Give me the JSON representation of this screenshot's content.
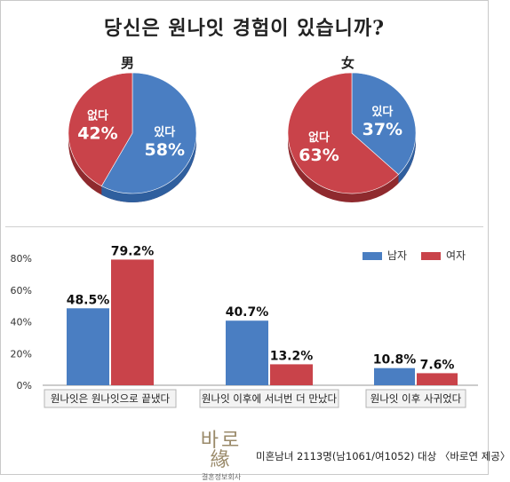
{
  "title": "당신은 원나잇 경험이 있습니까?",
  "colors": {
    "blue": "#4a7ec2",
    "red": "#c9434a",
    "edge_blue": "#2f5f9e",
    "edge_red": "#8f2a2e"
  },
  "chart_data": [
    {
      "type": "pie",
      "title": "男",
      "slices": [
        {
          "label": "있다",
          "value": 58,
          "text": "58%",
          "color": "#4a7ec2"
        },
        {
          "label": "없다",
          "value": 42,
          "text": "42%",
          "color": "#c9434a"
        }
      ]
    },
    {
      "type": "pie",
      "title": "女",
      "slices": [
        {
          "label": "있다",
          "value": 37,
          "text": "37%",
          "color": "#4a7ec2"
        },
        {
          "label": "없다",
          "value": 63,
          "text": "63%",
          "color": "#c9434a"
        }
      ]
    },
    {
      "type": "bar",
      "categories": [
        "원나잇은 원나잇으로 끝냈다",
        "원나잇 이후에 서너번 더 만났다",
        "원나잇 이후 사귀었다"
      ],
      "series": [
        {
          "name": "남자",
          "values": [
            48.5,
            40.7,
            10.8
          ],
          "labels": [
            "48.5%",
            "40.7%",
            "10.8%"
          ],
          "color": "#4a7ec2"
        },
        {
          "name": "여자",
          "values": [
            79.2,
            13.2,
            7.6
          ],
          "labels": [
            "79.2%",
            "13.2%",
            "7.6%"
          ],
          "color": "#c9434a"
        }
      ],
      "yticks": [
        "0%",
        "20%",
        "40%",
        "60%",
        "80%"
      ],
      "ylim": [
        0,
        80
      ],
      "legend_position": "top-right"
    }
  ],
  "footer": {
    "logo": "바로緣",
    "logo_sub": "결혼정보회사",
    "note": "미혼남녀 2113명(남1061/여1052) 대상 〈바로연 제공〉"
  }
}
